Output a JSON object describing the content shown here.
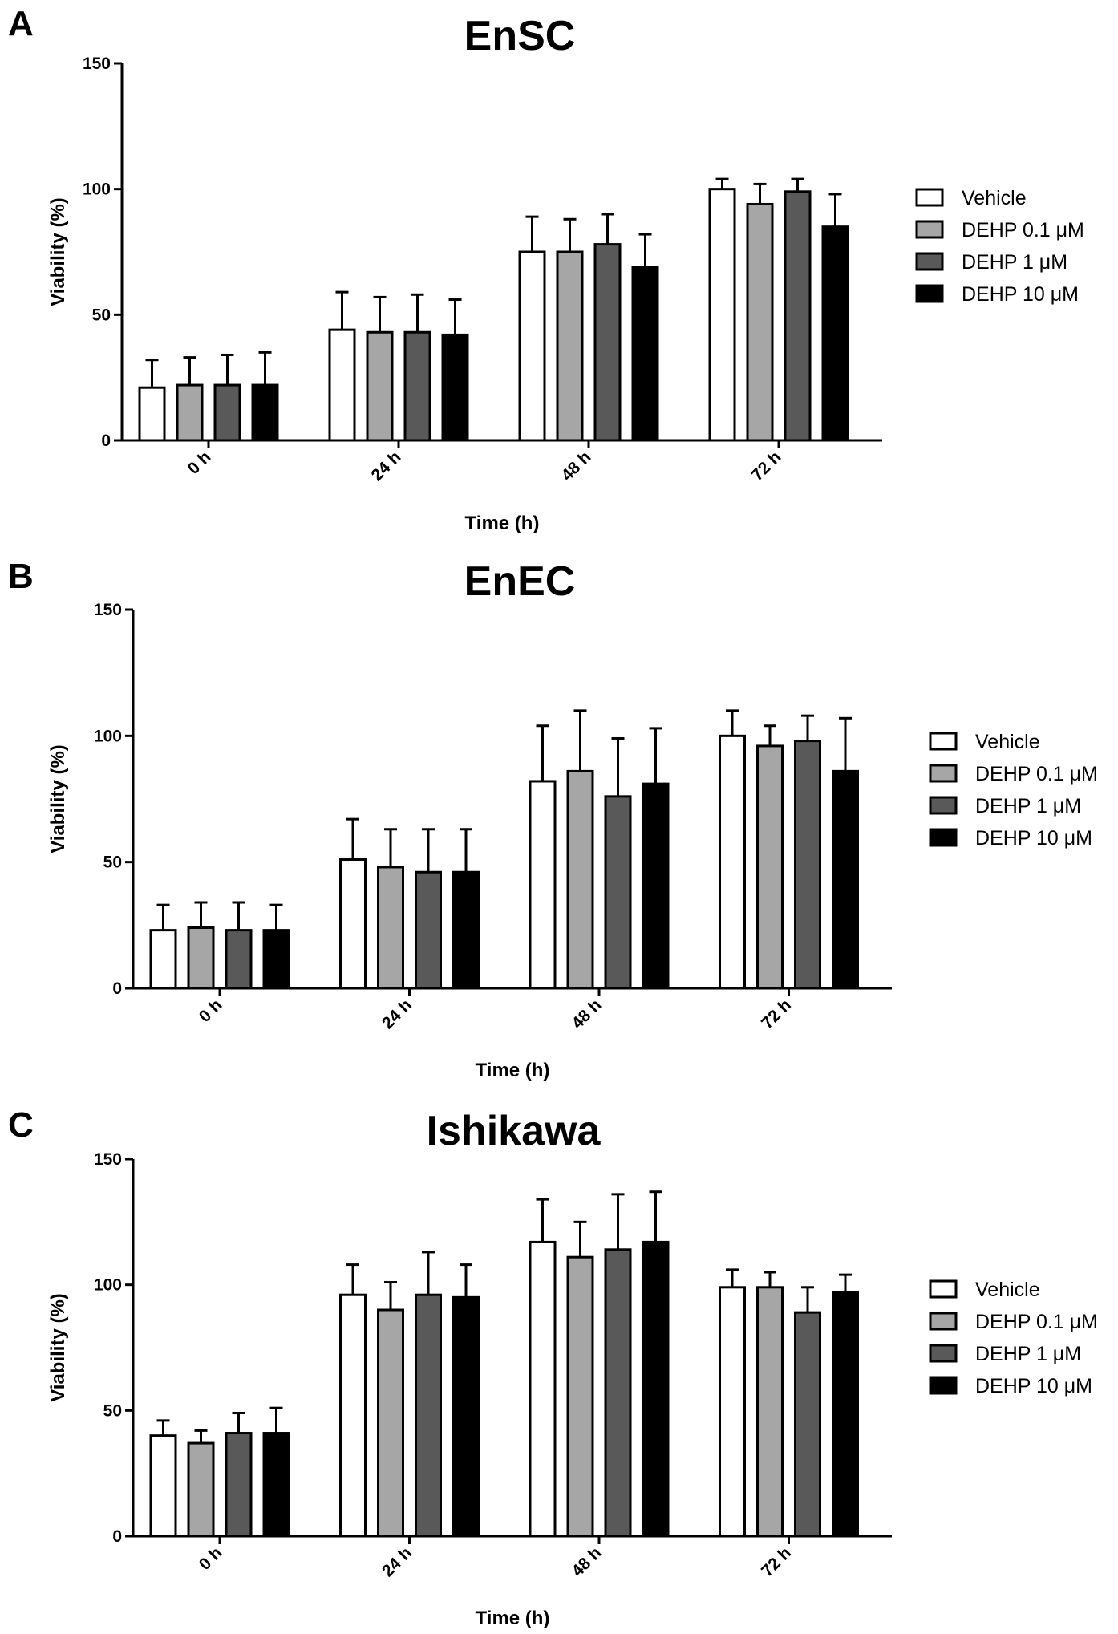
{
  "chart_data": [
    {
      "panel": "A",
      "type": "bar",
      "title": "EnSC",
      "xlabel": "Time (h)",
      "ylabel": "Viability (%)",
      "ylim": [
        0,
        150
      ],
      "yticks": [
        0,
        50,
        100,
        150
      ],
      "categories": [
        "0 h",
        "24 h",
        "48 h",
        "72 h"
      ],
      "series": [
        {
          "name": "Vehicle",
          "color": "#ffffff",
          "values": [
            21,
            44,
            75,
            100
          ],
          "errors": [
            11,
            15,
            14,
            4
          ]
        },
        {
          "name": "DEHP 0.1 μM",
          "color": "#a6a6a6",
          "values": [
            22,
            43,
            75,
            94
          ],
          "errors": [
            11,
            14,
            13,
            8
          ]
        },
        {
          "name": "DEHP 1 μM",
          "color": "#595959",
          "values": [
            22,
            43,
            78,
            99
          ],
          "errors": [
            12,
            15,
            12,
            5
          ]
        },
        {
          "name": "DEHP 10 μM",
          "color": "#000000",
          "values": [
            22,
            42,
            69,
            85
          ],
          "errors": [
            13,
            14,
            13,
            13
          ]
        }
      ]
    },
    {
      "panel": "B",
      "type": "bar",
      "title": "EnEC",
      "xlabel": "Time (h)",
      "ylabel": "Viability (%)",
      "ylim": [
        0,
        150
      ],
      "yticks": [
        0,
        50,
        100,
        150
      ],
      "categories": [
        "0 h",
        "24 h",
        "48 h",
        "72 h"
      ],
      "series": [
        {
          "name": "Vehicle",
          "color": "#ffffff",
          "values": [
            23,
            51,
            82,
            100
          ],
          "errors": [
            10,
            16,
            22,
            10
          ]
        },
        {
          "name": "DEHP 0.1 μM",
          "color": "#a6a6a6",
          "values": [
            24,
            48,
            86,
            96
          ],
          "errors": [
            10,
            15,
            24,
            8
          ]
        },
        {
          "name": "DEHP 1 μM",
          "color": "#595959",
          "values": [
            23,
            46,
            76,
            98
          ],
          "errors": [
            11,
            17,
            23,
            10
          ]
        },
        {
          "name": "DEHP 10 μM",
          "color": "#000000",
          "values": [
            23,
            46,
            81,
            86
          ],
          "errors": [
            10,
            17,
            22,
            21
          ]
        }
      ]
    },
    {
      "panel": "C",
      "type": "bar",
      "title": "Ishikawa",
      "xlabel": "Time (h)",
      "ylabel": "Viability (%)",
      "ylim": [
        0,
        150
      ],
      "yticks": [
        0,
        50,
        100,
        150
      ],
      "categories": [
        "0 h",
        "24 h",
        "48 h",
        "72 h"
      ],
      "series": [
        {
          "name": "Vehicle",
          "color": "#ffffff",
          "values": [
            40,
            96,
            117,
            99
          ],
          "errors": [
            6,
            12,
            17,
            7
          ]
        },
        {
          "name": "DEHP 0.1 μM",
          "color": "#a6a6a6",
          "values": [
            37,
            90,
            111,
            99
          ],
          "errors": [
            5,
            11,
            14,
            6
          ]
        },
        {
          "name": "DEHP 1 μM",
          "color": "#595959",
          "values": [
            41,
            96,
            114,
            89
          ],
          "errors": [
            8,
            17,
            22,
            10
          ]
        },
        {
          "name": "DEHP 10 μM",
          "color": "#000000",
          "values": [
            41,
            95,
            117,
            97
          ],
          "errors": [
            10,
            13,
            20,
            7
          ]
        }
      ]
    }
  ]
}
